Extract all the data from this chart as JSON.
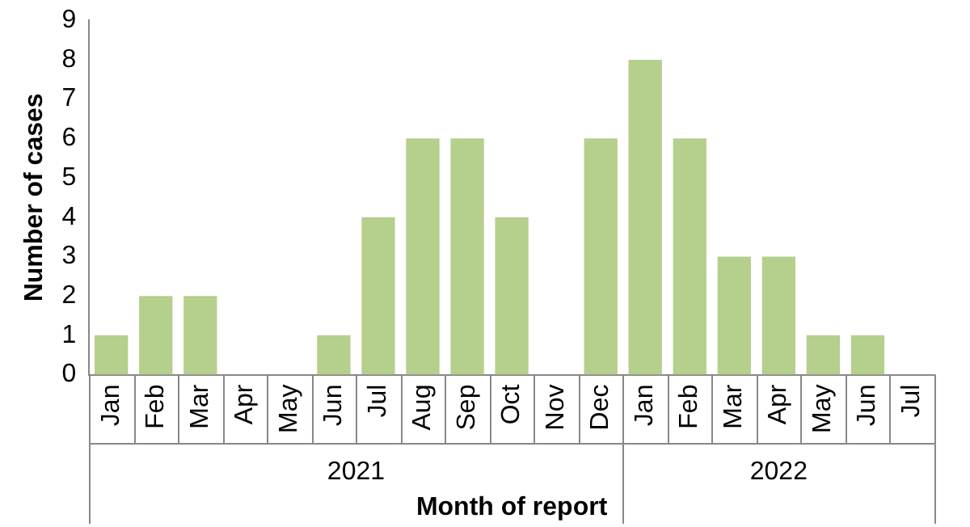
{
  "chart_data": {
    "type": "bar",
    "xlabel": "Month of report",
    "ylabel": "Number of cases",
    "categories": [
      "Jan",
      "Feb",
      "Mar",
      "Apr",
      "May",
      "Jun",
      "Jul",
      "Aug",
      "Sep",
      "Oct",
      "Nov",
      "Dec",
      "Jan",
      "Feb",
      "Mar",
      "Apr",
      "May",
      "Jun",
      "Jul"
    ],
    "values": [
      1,
      2,
      2,
      0,
      0,
      1,
      4,
      6,
      6,
      4,
      0,
      6,
      8,
      6,
      3,
      3,
      1,
      1,
      0
    ],
    "color": "#b5cf8c",
    "ylim": [
      0,
      9
    ],
    "yticks": [
      0,
      1,
      2,
      3,
      4,
      5,
      6,
      7,
      8,
      9
    ],
    "annotations": [
      "2021",
      "2022"
    ],
    "grid": false,
    "legend": false
  }
}
